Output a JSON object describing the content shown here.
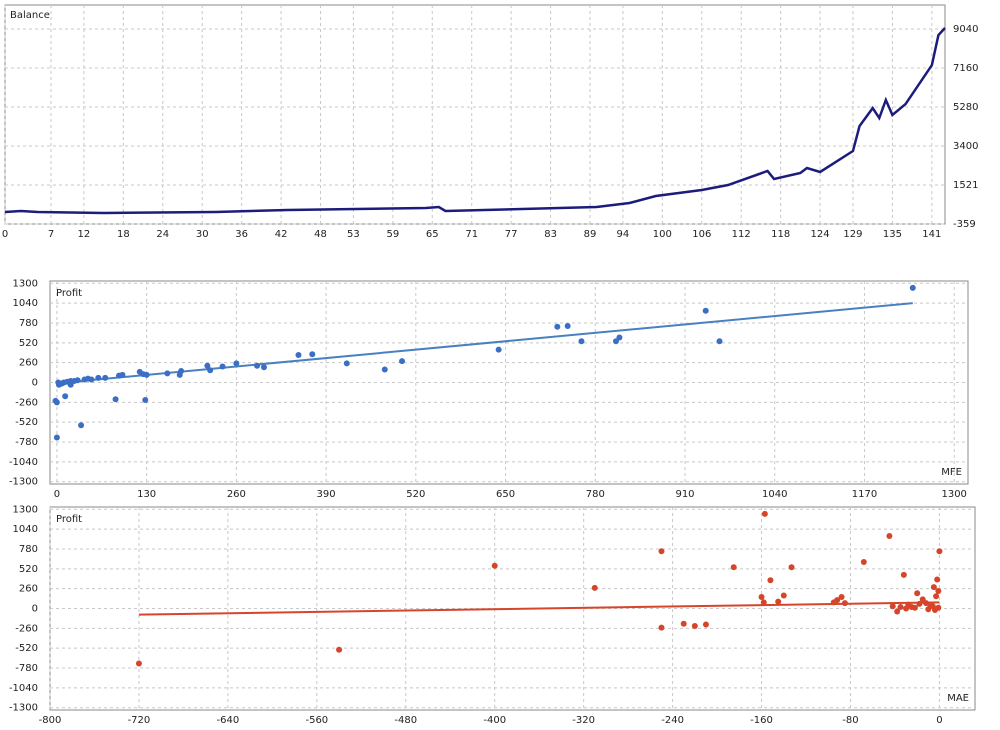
{
  "chart_data": [
    {
      "type": "line",
      "title": "Balance",
      "y_axis_side": "right",
      "grid": true,
      "x": [
        0,
        2.4,
        5,
        15,
        32,
        43,
        64,
        66,
        67,
        90,
        95,
        99,
        106,
        110,
        116,
        117,
        121,
        122,
        124,
        129,
        130,
        132,
        133,
        134,
        135,
        137,
        141,
        142,
        143
      ],
      "series": [
        {
          "color": "#1c1c7c",
          "values": [
            219,
            268,
            219,
            171,
            219,
            316,
            412,
            460,
            268,
            460,
            653,
            990,
            1280,
            1520,
            2196,
            1810,
            2100,
            2340,
            2150,
            3160,
            4365,
            5230,
            4750,
            5620,
            4900,
            5425,
            7300,
            8750,
            9090
          ]
        }
      ],
      "xlim": [
        0,
        143
      ],
      "xticks": [
        0,
        7,
        12,
        18,
        24,
        30,
        36,
        42,
        48,
        53,
        59,
        65,
        71,
        77,
        83,
        89,
        94,
        100,
        106,
        112,
        118,
        124,
        129,
        135,
        141
      ],
      "ylim": [
        -359,
        10200
      ],
      "yticks": [
        -359,
        1521,
        3400,
        5280,
        7160,
        9040
      ]
    },
    {
      "type": "scatter",
      "ylabel": "Profit",
      "xlabel": "MFE",
      "y_axis_side": "left",
      "grid": true,
      "points": {
        "color": "#3b6fc6",
        "x": [
          1240,
          940,
          960,
          740,
          725,
          760,
          810,
          815,
          640,
          500,
          475,
          420,
          370,
          350,
          300,
          290,
          260,
          240,
          218,
          222,
          178,
          180,
          160,
          130,
          125,
          120,
          128,
          95,
          90,
          85,
          70,
          60,
          50,
          45,
          35,
          40,
          30,
          25,
          20,
          15,
          10,
          8,
          5,
          3,
          2,
          12,
          0,
          -2,
          0,
          20
        ],
        "y": [
          1240,
          940,
          540,
          740,
          730,
          540,
          540,
          590,
          430,
          280,
          170,
          250,
          370,
          360,
          200,
          220,
          250,
          210,
          220,
          160,
          100,
          150,
          120,
          100,
          110,
          140,
          -230,
          100,
          90,
          -220,
          60,
          60,
          40,
          50,
          -560,
          40,
          30,
          20,
          20,
          10,
          0,
          -10,
          -20,
          -30,
          0,
          -180,
          -260,
          -240,
          -720,
          -30
        ]
      },
      "trend": {
        "color": "#4a80c0",
        "x": [
          0,
          1240
        ],
        "y": [
          -10,
          1040
        ]
      },
      "xlim": [
        -10,
        1320
      ],
      "xticks": [
        0,
        130,
        260,
        390,
        520,
        650,
        780,
        910,
        1040,
        1170,
        1300
      ],
      "ylim": [
        -1330,
        1330
      ],
      "yticks": [
        1300,
        1040,
        780,
        520,
        260,
        0,
        -260,
        -520,
        -780,
        -1040,
        -1300
      ]
    },
    {
      "type": "scatter",
      "ylabel": "Profit",
      "xlabel": "MAE",
      "y_axis_side": "left",
      "grid": true,
      "points": {
        "color": "#d6452a",
        "x": [
          -720,
          -540,
          -400,
          -310,
          -250,
          -250,
          -230,
          -220,
          -210,
          -185,
          -160,
          -158,
          -157,
          -152,
          -145,
          -140,
          -133,
          -95,
          -92,
          -88,
          -85,
          -68,
          -45,
          -42,
          -38,
          -32,
          -28,
          -25,
          -20,
          -15,
          -12,
          -8,
          -5,
          -3,
          -2,
          -1,
          0,
          -1,
          -4,
          -6,
          -10,
          -18,
          -22,
          -30,
          -35
        ],
        "y": [
          -720,
          -540,
          560,
          270,
          750,
          -250,
          -200,
          -230,
          -210,
          540,
          150,
          80,
          1240,
          370,
          90,
          170,
          540,
          80,
          110,
          150,
          70,
          610,
          950,
          30,
          -40,
          440,
          50,
          20,
          200,
          120,
          70,
          40,
          280,
          160,
          380,
          10,
          750,
          230,
          -20,
          30,
          -10,
          60,
          10,
          0,
          20
        ]
      },
      "trend": {
        "color": "#d6452a",
        "x": [
          -720,
          0
        ],
        "y": [
          -80,
          80
        ]
      },
      "xlim": [
        -800,
        32
      ],
      "xticks": [
        -800,
        -720,
        -640,
        -560,
        -480,
        -400,
        -320,
        -240,
        -160,
        -80,
        0
      ],
      "ylim": [
        -1330,
        1330
      ],
      "yticks": [
        1300,
        1040,
        780,
        520,
        260,
        0,
        -260,
        -520,
        -780,
        -1040,
        -1300
      ]
    }
  ]
}
